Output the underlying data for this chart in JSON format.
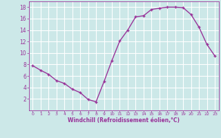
{
  "x": [
    0,
    1,
    2,
    3,
    4,
    5,
    6,
    7,
    8,
    9,
    10,
    11,
    12,
    13,
    14,
    15,
    16,
    17,
    18,
    19,
    20,
    21,
    22,
    23
  ],
  "y": [
    7.8,
    7.0,
    6.3,
    5.2,
    4.7,
    3.7,
    3.1,
    1.9,
    1.5,
    5.0,
    8.7,
    12.1,
    14.0,
    16.3,
    16.5,
    17.6,
    17.8,
    18.0,
    18.0,
    17.9,
    16.7,
    14.5,
    11.5,
    9.5
  ],
  "line_color": "#993399",
  "marker": "+",
  "bg_color": "#cce8e8",
  "grid_color": "#ffffff",
  "axis_label_color": "#993399",
  "tick_color": "#993399",
  "xlabel": "Windchill (Refroidissement éolien,°C)",
  "xlim": [
    -0.5,
    23.5
  ],
  "ylim": [
    0,
    19
  ],
  "yticks": [
    2,
    4,
    6,
    8,
    10,
    12,
    14,
    16,
    18
  ],
  "xticks": [
    0,
    1,
    2,
    3,
    4,
    5,
    6,
    7,
    8,
    9,
    10,
    11,
    12,
    13,
    14,
    15,
    16,
    17,
    18,
    19,
    20,
    21,
    22,
    23
  ],
  "xlabel_fontsize": 5.5,
  "tick_fontsize_x": 4.5,
  "tick_fontsize_y": 5.5
}
